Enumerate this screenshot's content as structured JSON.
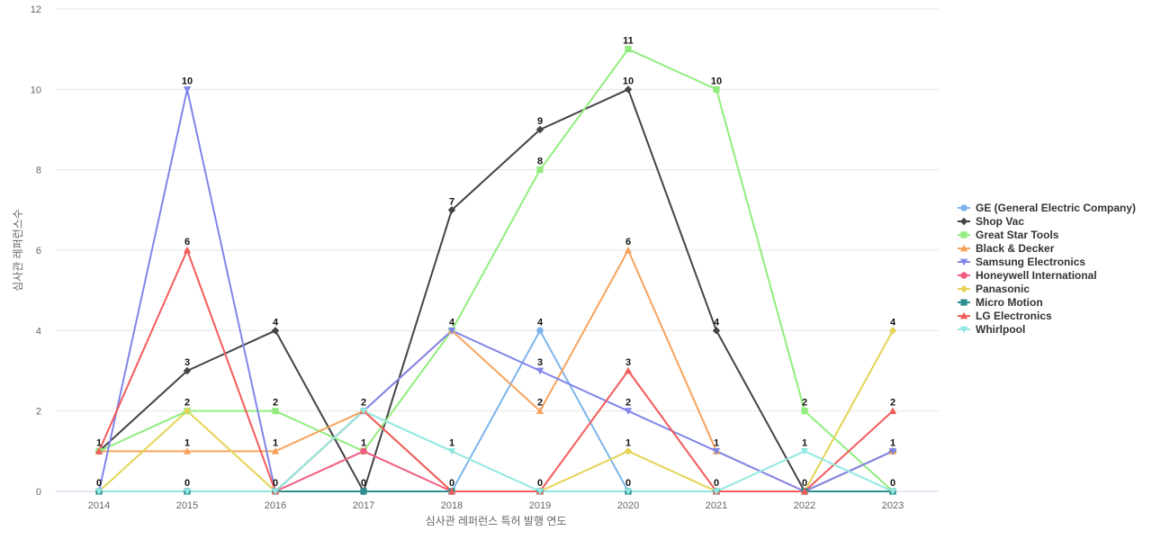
{
  "chart_data": {
    "type": "line",
    "title": "",
    "xlabel": "심사관 레퍼런스 특허 발행 연도",
    "ylabel": "심사관 레퍼런스수",
    "x": [
      "2014",
      "2015",
      "2016",
      "2017",
      "2018",
      "2019",
      "2020",
      "2021",
      "2022",
      "2023"
    ],
    "ylim": [
      0,
      12
    ],
    "yticks": [
      0,
      2,
      4,
      6,
      8,
      10,
      12
    ],
    "grid": true,
    "legend_position": "right",
    "series": [
      {
        "name": "GE (General Electric Company)",
        "color": "#7cb5ec",
        "marker": "circle",
        "values": [
          0,
          0,
          0,
          2,
          0,
          4,
          0,
          0,
          0,
          0
        ]
      },
      {
        "name": "Shop Vac",
        "color": "#434348",
        "marker": "diamond",
        "values": [
          1,
          3,
          4,
          0,
          7,
          9,
          10,
          4,
          0,
          1
        ]
      },
      {
        "name": "Great Star Tools",
        "color": "#90ed7d",
        "marker": "square",
        "values": [
          1,
          2,
          2,
          1,
          4,
          8,
          11,
          10,
          2,
          0
        ]
      },
      {
        "name": "Black & Decker",
        "color": "#f7a35c",
        "marker": "triangle",
        "values": [
          1,
          1,
          1,
          2,
          4,
          2,
          6,
          1,
          0,
          1
        ]
      },
      {
        "name": "Samsung Electronics",
        "color": "#8085e9",
        "marker": "triangle-down",
        "values": [
          0,
          10,
          0,
          2,
          4,
          3,
          2,
          1,
          0,
          1
        ]
      },
      {
        "name": "Honeywell International",
        "color": "#f15c80",
        "marker": "circle",
        "values": [
          0,
          0,
          0,
          1,
          0,
          0,
          0,
          0,
          0,
          0
        ]
      },
      {
        "name": "Panasonic",
        "color": "#e4d354",
        "marker": "diamond",
        "values": [
          0,
          2,
          0,
          2,
          0,
          0,
          1,
          0,
          0,
          4
        ]
      },
      {
        "name": "Micro Motion",
        "color": "#2b908f",
        "marker": "square",
        "values": [
          0,
          0,
          0,
          0,
          0,
          0,
          0,
          0,
          0,
          0
        ]
      },
      {
        "name": "LG Electronics",
        "color": "#f45b5b",
        "marker": "triangle",
        "values": [
          1,
          6,
          0,
          2,
          0,
          0,
          3,
          0,
          0,
          2
        ]
      },
      {
        "name": "Whirlpool",
        "color": "#91e8e1",
        "marker": "triangle-down",
        "values": [
          0,
          0,
          0,
          2,
          1,
          0,
          0,
          0,
          1,
          0
        ]
      }
    ],
    "data_labels": [
      {
        "x": "2014",
        "value": 1
      },
      {
        "x": "2014",
        "value": 0
      },
      {
        "x": "2015",
        "value": 10
      },
      {
        "x": "2015",
        "value": 6
      },
      {
        "x": "2015",
        "value": 3
      },
      {
        "x": "2015",
        "value": 2
      },
      {
        "x": "2015",
        "value": 1
      },
      {
        "x": "2015",
        "value": 0
      },
      {
        "x": "2016",
        "value": 4
      },
      {
        "x": "2016",
        "value": 2
      },
      {
        "x": "2016",
        "value": 1
      },
      {
        "x": "2016",
        "value": 0
      },
      {
        "x": "2017",
        "value": 2
      },
      {
        "x": "2017",
        "value": 1
      },
      {
        "x": "2017",
        "value": 0
      },
      {
        "x": "2018",
        "value": 7
      },
      {
        "x": "2018",
        "value": 4
      },
      {
        "x": "2018",
        "value": 1
      },
      {
        "x": "2018",
        "value": 0
      },
      {
        "x": "2019",
        "value": 9
      },
      {
        "x": "2019",
        "value": 8
      },
      {
        "x": "2019",
        "value": 4
      },
      {
        "x": "2019",
        "value": 3
      },
      {
        "x": "2019",
        "value": 2
      },
      {
        "x": "2019",
        "value": 0
      },
      {
        "x": "2020",
        "value": 11
      },
      {
        "x": "2020",
        "value": 10
      },
      {
        "x": "2020",
        "value": 6
      },
      {
        "x": "2020",
        "value": 3
      },
      {
        "x": "2020",
        "value": 2
      },
      {
        "x": "2020",
        "value": 1
      },
      {
        "x": "2020",
        "value": 0
      },
      {
        "x": "2021",
        "value": 10
      },
      {
        "x": "2021",
        "value": 4
      },
      {
        "x": "2021",
        "value": 1
      },
      {
        "x": "2021",
        "value": 0
      },
      {
        "x": "2022",
        "value": 2
      },
      {
        "x": "2022",
        "value": 1
      },
      {
        "x": "2022",
        "value": 0
      },
      {
        "x": "2023",
        "value": 4
      },
      {
        "x": "2023",
        "value": 2
      },
      {
        "x": "2023",
        "value": 1
      },
      {
        "x": "2023",
        "value": 0
      }
    ]
  }
}
